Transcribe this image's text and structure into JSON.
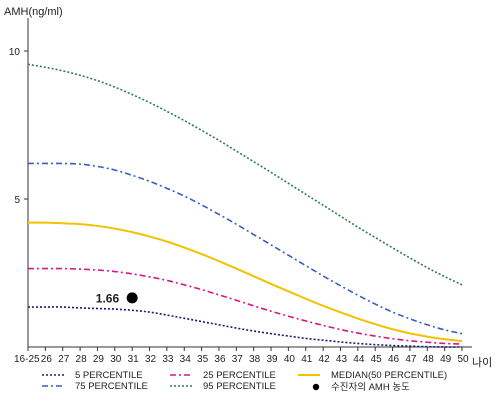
{
  "chart_data": {
    "type": "line",
    "ylabel": "AMH(ng/ml)",
    "xlabel": "나이",
    "ylim": [
      0,
      11
    ],
    "yticks": [
      10,
      5
    ],
    "categories": [
      "16-25",
      "26",
      "27",
      "28",
      "29",
      "30",
      "31",
      "32",
      "33",
      "34",
      "35",
      "36",
      "37",
      "38",
      "39",
      "40",
      "41",
      "42",
      "43",
      "44",
      "45",
      "46",
      "47",
      "48",
      "49",
      "50"
    ],
    "series": [
      {
        "name": "5 PERCENTILE",
        "color": "#1a1a6e",
        "dash": "2,2",
        "values": [
          1.35,
          1.35,
          1.35,
          1.32,
          1.3,
          1.28,
          1.24,
          1.18,
          1.08,
          0.97,
          0.86,
          0.75,
          0.64,
          0.54,
          0.45,
          0.37,
          0.29,
          0.23,
          0.17,
          0.12,
          0.08,
          0.05,
          0.03,
          0.01,
          0.0,
          0.0
        ]
      },
      {
        "name": "25 PERCENTILE",
        "color": "#d6178a",
        "dash": "6,3,2,3",
        "values": [
          2.65,
          2.65,
          2.65,
          2.63,
          2.6,
          2.55,
          2.47,
          2.37,
          2.25,
          2.1,
          1.94,
          1.76,
          1.58,
          1.39,
          1.21,
          1.04,
          0.88,
          0.73,
          0.59,
          0.47,
          0.37,
          0.28,
          0.21,
          0.16,
          0.12,
          0.1
        ]
      },
      {
        "name": "MEDIAN(50 PERCENTILE)",
        "color": "#f2c200",
        "dash": "",
        "values": [
          4.2,
          4.2,
          4.18,
          4.15,
          4.09,
          4.0,
          3.88,
          3.73,
          3.56,
          3.36,
          3.14,
          2.9,
          2.65,
          2.39,
          2.13,
          1.88,
          1.63,
          1.39,
          1.17,
          0.96,
          0.77,
          0.6,
          0.46,
          0.35,
          0.26,
          0.2
        ]
      },
      {
        "name": "75 PERCENTILE",
        "color": "#3a5cc4",
        "dash": "6,3,2,3",
        "values": [
          6.2,
          6.2,
          6.2,
          6.18,
          6.1,
          5.98,
          5.8,
          5.6,
          5.36,
          5.1,
          4.8,
          4.48,
          4.15,
          3.8,
          3.45,
          3.1,
          2.75,
          2.4,
          2.07,
          1.75,
          1.45,
          1.18,
          0.95,
          0.75,
          0.58,
          0.45
        ]
      },
      {
        "name": "95 PERCENTILE",
        "color": "#2e7d4f",
        "dash": "2,2",
        "values": [
          9.55,
          9.45,
          9.33,
          9.18,
          9.0,
          8.78,
          8.53,
          8.26,
          7.96,
          7.65,
          7.32,
          6.98,
          6.62,
          6.26,
          5.9,
          5.53,
          5.16,
          4.79,
          4.42,
          4.05,
          3.7,
          3.35,
          3.01,
          2.68,
          2.38,
          2.1
        ]
      }
    ],
    "points": [
      {
        "x": "31",
        "y": 1.66,
        "label": "1.66",
        "legend": "수진자의 AMH 농도"
      }
    ]
  }
}
